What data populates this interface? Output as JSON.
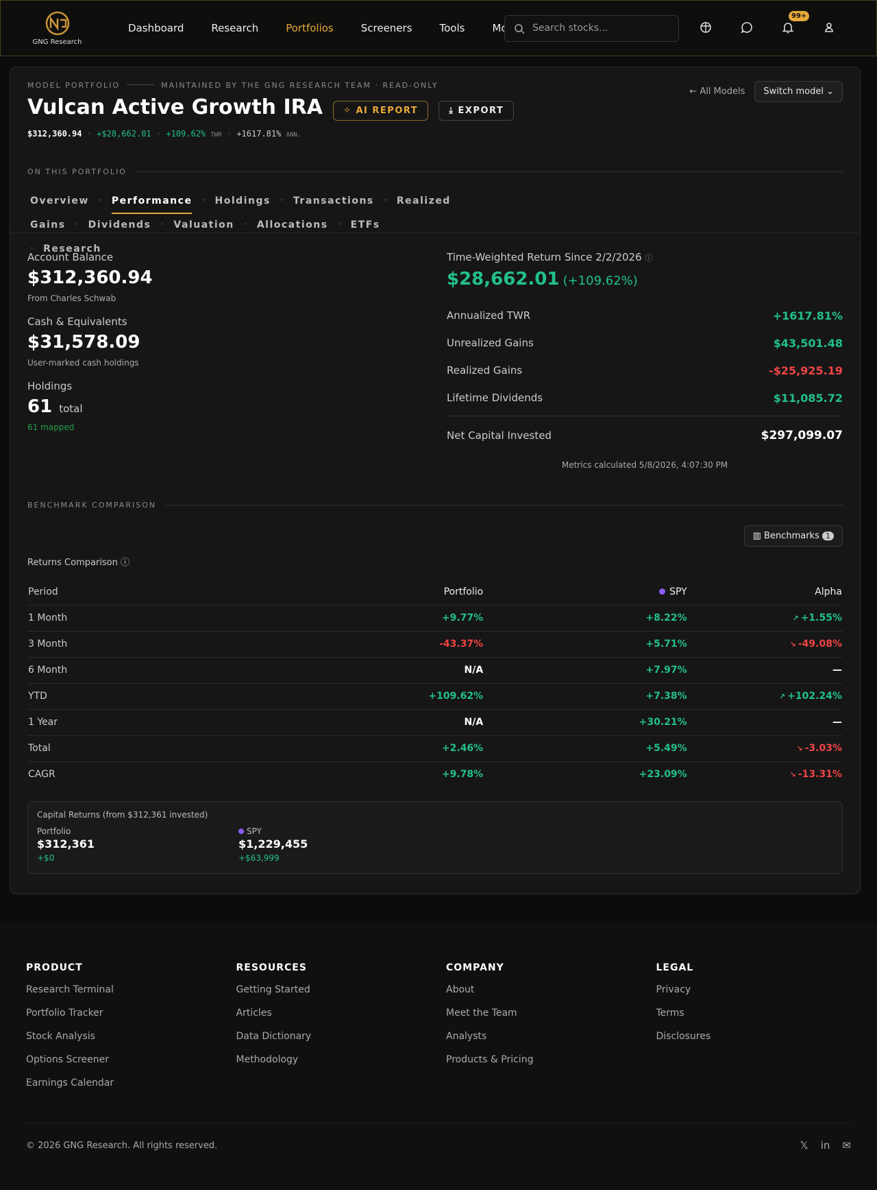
{
  "nav": {
    "logo": "GNG Research",
    "links": [
      "Dashboard",
      "Research",
      "Portfolios",
      "Screeners",
      "Tools",
      "Mor"
    ],
    "active": 2,
    "search_placeholder": "Search stocks...",
    "badge": "99+"
  },
  "header": {
    "eyebrow": "MODEL PORTFOLIO",
    "maintained": "MAINTAINED BY THE GNG RESEARCH TEAM · READ-ONLY",
    "title": "Vulcan Active Growth IRA",
    "ai_report": "AI REPORT",
    "export": "EXPORT",
    "all_models": "All Models",
    "switch_model": "Switch model",
    "stats": {
      "value": "$312,360.94",
      "gain": "+$28,662.01",
      "twr": "+109.62%",
      "twr_label": "TWR",
      "ann": "+1617.81%",
      "ann_label": "ANN."
    }
  },
  "tabs": {
    "label": "ON THIS PORTFOLIO",
    "items": [
      "Overview",
      "Performance",
      "Holdings",
      "Transactions",
      "Realized Gains",
      "Dividends",
      "Valuation",
      "Allocations",
      "ETFs",
      "Research"
    ],
    "active": 1
  },
  "summary": {
    "left": [
      {
        "label": "Account Balance",
        "value": "$312,360.94",
        "note": "From Charles Schwab"
      },
      {
        "label": "Cash & Equivalents",
        "value": "$31,578.09",
        "note": "User-marked cash holdings"
      },
      {
        "label": "Holdings",
        "value": "61",
        "unit": "total",
        "note": "61 mapped"
      }
    ],
    "twr_title": "Time-Weighted Return Since 2/2/2026",
    "twr_value": "$28,662.01",
    "twr_pct": "(+109.62%)",
    "metrics": [
      {
        "label": "Annualized TWR",
        "value": "+1617.81%",
        "color": "#22c08a"
      },
      {
        "label": "Unrealized Gains",
        "value": "$43,501.48",
        "color": "#22c08a"
      },
      {
        "label": "Realized Gains",
        "value": "-$25,925.19",
        "color": "#ef4444"
      },
      {
        "label": "Lifetime Dividends",
        "value": "$11,085.72",
        "color": "#22c08a"
      }
    ],
    "net_label": "Net Capital Invested",
    "net_value": "$297,099.07",
    "calculated": "Metrics calculated 5/8/2026, 4:07:30 PM"
  },
  "benchmark": {
    "label": "BENCHMARK COMPARISON",
    "button": "Benchmarks",
    "count": "1",
    "subtitle": "Returns Comparison",
    "spy_color": "#8b5cf6",
    "table": {
      "headers": [
        "Period",
        "Portfolio",
        "SPY",
        "Alpha"
      ],
      "rows": [
        [
          "1 Month",
          "+9.77%",
          "+8.22%",
          "+1.55%"
        ],
        [
          "3 Month",
          "-43.37%",
          "+5.71%",
          "-49.08%"
        ],
        [
          "6 Month",
          "N/A",
          "+7.97%",
          "—"
        ],
        [
          "YTD",
          "+109.62%",
          "+7.38%",
          "+102.24%"
        ],
        [
          "1 Year",
          "N/A",
          "+30.21%",
          "—"
        ],
        [
          "Total",
          "+2.46%",
          "+5.49%",
          "-3.03%"
        ],
        [
          "CAGR",
          "+9.78%",
          "+23.09%",
          "-13.31%"
        ]
      ]
    },
    "capital": {
      "title": "Capital Returns (from $312,361 invested)",
      "entries": [
        {
          "name": "Portfolio",
          "value": "$312,361",
          "change": "+$0"
        },
        {
          "name": "SPY",
          "value": "$1,229,455",
          "change": "+$63,999"
        }
      ]
    }
  },
  "footer": {
    "columns": [
      {
        "heading": "PRODUCT",
        "links": [
          "Research Terminal",
          "Portfolio Tracker",
          "Stock Analysis",
          "Options Screener",
          "Earnings Calendar"
        ]
      },
      {
        "heading": "RESOURCES",
        "links": [
          "Getting Started",
          "Articles",
          "Data Dictionary",
          "Methodology"
        ]
      },
      {
        "heading": "COMPANY",
        "links": [
          "About",
          "Meet the Team",
          "Analysts",
          "Products & Pricing"
        ]
      },
      {
        "heading": "LEGAL",
        "links": [
          "Privacy",
          "Terms",
          "Disclosures"
        ]
      }
    ],
    "copyright": "© 2026 GNG Research. All rights reserved."
  }
}
